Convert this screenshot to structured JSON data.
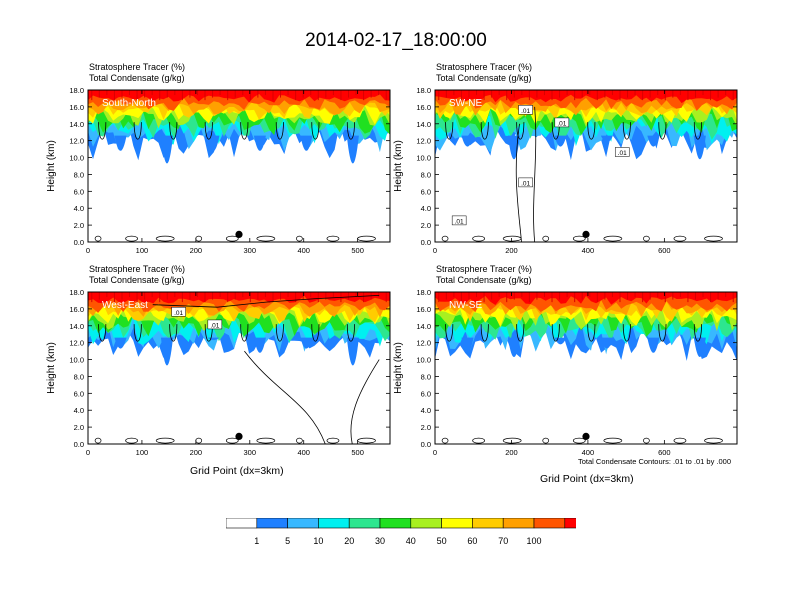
{
  "title": "2014-02-17_18:00:00",
  "header_line1": "Stratosphere Tracer   (%)",
  "header_line2": "Total Condensate   (g/kg)",
  "footnote": "Total Condensate Contours: .01 to .01 by .000",
  "colors": {
    "levels": [
      "#ffffff",
      "#1f80ff",
      "#38b8ff",
      "#00f0f0",
      "#2de68f",
      "#20e020",
      "#a8f020",
      "#ffff00",
      "#ffcc00",
      "#ffa000",
      "#ff5500",
      "#ff0000"
    ],
    "contour": "#000000"
  },
  "colorbar": {
    "labels": [
      "1",
      "5",
      "10",
      "20",
      "30",
      "40",
      "50",
      "60",
      "70",
      "100"
    ]
  },
  "chart_data": [
    {
      "type": "heatmap",
      "panel": "South-North",
      "ylabel": "Height (km)",
      "xlabel": "",
      "xlim": [
        0,
        560
      ],
      "ylim": [
        0,
        18
      ],
      "xticks": [
        "0",
        "100",
        "200",
        "300",
        "400",
        "500"
      ],
      "yticks": [
        "0.0",
        "2.0",
        "4.0",
        "6.0",
        "8.0",
        "10.0",
        "12.0",
        "14.0",
        "16.0",
        "18.0"
      ],
      "marker_x": 280,
      "contour_labels": []
    },
    {
      "type": "heatmap",
      "panel": "SW-NE",
      "ylabel": "Height (km)",
      "xlabel": "",
      "xlim": [
        0,
        790
      ],
      "ylim": [
        0,
        18
      ],
      "xticks": [
        "0",
        "200",
        "400",
        "600"
      ],
      "yticks": [
        "0.0",
        "2.0",
        "4.0",
        "6.0",
        "8.0",
        "10.0",
        "12.0",
        "14.0",
        "16.0",
        "18.0"
      ],
      "marker_x": 395,
      "contour_labels": [
        ".01",
        ".01",
        ".01",
        ".01",
        ".01"
      ]
    },
    {
      "type": "heatmap",
      "panel": "West-East",
      "ylabel": "Height (km)",
      "xlabel": "Grid Point (dx=3km)",
      "xlim": [
        0,
        560
      ],
      "ylim": [
        0,
        18
      ],
      "xticks": [
        "0",
        "100",
        "200",
        "300",
        "400",
        "500"
      ],
      "yticks": [
        "0.0",
        "2.0",
        "4.0",
        "6.0",
        "8.0",
        "10.0",
        "12.0",
        "14.0",
        "16.0",
        "18.0"
      ],
      "marker_x": 280,
      "contour_labels": [
        ".01",
        ".01"
      ]
    },
    {
      "type": "heatmap",
      "panel": "NW-SE",
      "ylabel": "Height (km)",
      "xlabel": "Grid Point (dx=3km)",
      "xlim": [
        0,
        790
      ],
      "ylim": [
        0,
        18
      ],
      "xticks": [
        "0",
        "200",
        "400",
        "600"
      ],
      "yticks": [
        "0.0",
        "2.0",
        "4.0",
        "6.0",
        "8.0",
        "10.0",
        "12.0",
        "14.0",
        "16.0",
        "18.0"
      ],
      "marker_x": 395,
      "contour_labels": []
    }
  ]
}
